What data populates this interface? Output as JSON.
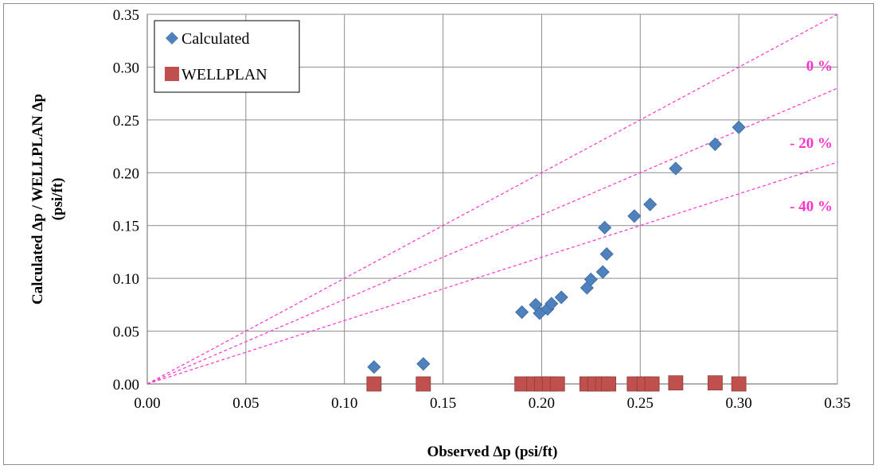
{
  "chart_data": {
    "type": "scatter",
    "title": "",
    "xlabel": "Observed Δp (psi/ft)",
    "ylabel_line1": "Calculated Δp / WELLPLAN Δp",
    "ylabel_line2": "(psi/ft)",
    "xlim": [
      0,
      0.35
    ],
    "ylim": [
      0,
      0.35
    ],
    "x_ticks": [
      "0.00",
      "0.05",
      "0.10",
      "0.15",
      "0.20",
      "0.25",
      "0.30",
      "0.35"
    ],
    "y_ticks": [
      "0.00",
      "0.05",
      "0.10",
      "0.15",
      "0.20",
      "0.25",
      "0.30",
      "0.35"
    ],
    "grid": true,
    "legend_position": "top-left",
    "series": [
      {
        "name": "Calculated",
        "marker": "diamond",
        "color": "#4f81bd",
        "points": [
          {
            "x": 0.115,
            "y": 0.016
          },
          {
            "x": 0.14,
            "y": 0.019
          },
          {
            "x": 0.19,
            "y": 0.068
          },
          {
            "x": 0.197,
            "y": 0.075
          },
          {
            "x": 0.199,
            "y": 0.067
          },
          {
            "x": 0.203,
            "y": 0.071
          },
          {
            "x": 0.205,
            "y": 0.076
          },
          {
            "x": 0.21,
            "y": 0.082
          },
          {
            "x": 0.223,
            "y": 0.091
          },
          {
            "x": 0.225,
            "y": 0.099
          },
          {
            "x": 0.231,
            "y": 0.106
          },
          {
            "x": 0.232,
            "y": 0.148
          },
          {
            "x": 0.233,
            "y": 0.123
          },
          {
            "x": 0.247,
            "y": 0.159
          },
          {
            "x": 0.255,
            "y": 0.17
          },
          {
            "x": 0.268,
            "y": 0.204
          },
          {
            "x": 0.288,
            "y": 0.227
          },
          {
            "x": 0.3,
            "y": 0.243
          }
        ]
      },
      {
        "name": "WELLPLAN",
        "marker": "square",
        "color": "#c0504d",
        "points": [
          {
            "x": 0.115,
            "y": 0.0
          },
          {
            "x": 0.14,
            "y": 0.0
          },
          {
            "x": 0.19,
            "y": 0.0
          },
          {
            "x": 0.196,
            "y": 0.0
          },
          {
            "x": 0.2,
            "y": 0.0
          },
          {
            "x": 0.204,
            "y": 0.0
          },
          {
            "x": 0.208,
            "y": 0.0
          },
          {
            "x": 0.223,
            "y": 0.0
          },
          {
            "x": 0.227,
            "y": 0.0
          },
          {
            "x": 0.231,
            "y": 0.0
          },
          {
            "x": 0.234,
            "y": 0.0
          },
          {
            "x": 0.247,
            "y": 0.0
          },
          {
            "x": 0.252,
            "y": 0.0
          },
          {
            "x": 0.256,
            "y": 0.0
          },
          {
            "x": 0.268,
            "y": 0.001
          },
          {
            "x": 0.288,
            "y": 0.001
          },
          {
            "x": 0.3,
            "y": 0.0
          }
        ]
      }
    ],
    "reference_lines": [
      {
        "label": "0 %",
        "slope": 1.0,
        "color": "#ff33cc",
        "style": "dashed"
      },
      {
        "label": "- 20 %",
        "slope": 0.8,
        "color": "#ff33cc",
        "style": "dashed"
      },
      {
        "label": "- 40 %",
        "slope": 0.6,
        "color": "#ff33cc",
        "style": "dashed"
      }
    ]
  }
}
